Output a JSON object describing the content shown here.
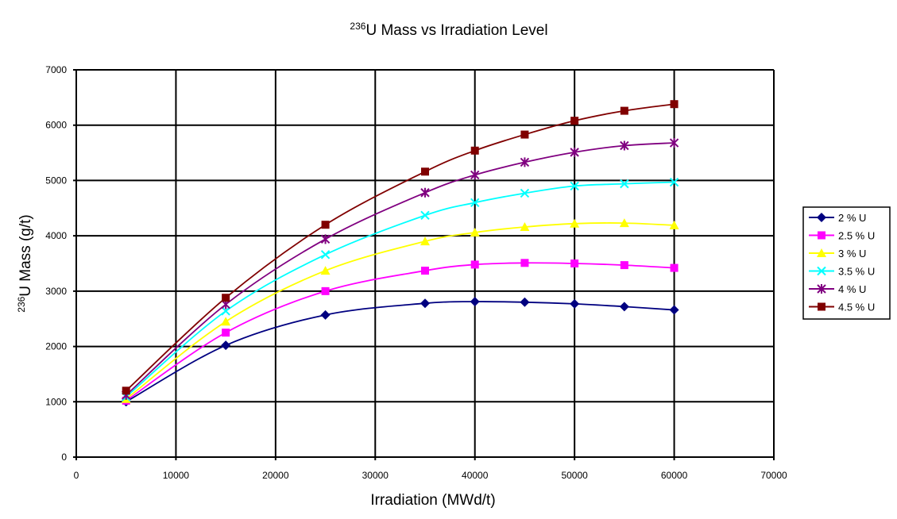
{
  "chart_data": {
    "type": "line",
    "title_sup": "236",
    "title": "U  Mass vs Irradiation Level",
    "xlabel": "Irradiation (MWd/t)",
    "ylabel_sup": "236",
    "ylabel": "U Mass (g/t)",
    "xlim": [
      0,
      70000
    ],
    "ylim": [
      0,
      7000
    ],
    "xticks": [
      "0",
      "10000",
      "20000",
      "30000",
      "40000",
      "50000",
      "60000",
      "70000"
    ],
    "yticks": [
      "0",
      "1000",
      "2000",
      "3000",
      "4000",
      "5000",
      "6000",
      "7000"
    ],
    "grid": true,
    "legend_position": "right",
    "x": [
      5000,
      15000,
      25000,
      35000,
      40000,
      45000,
      50000,
      55000,
      60000
    ],
    "series": [
      {
        "name": "2 % U",
        "color": "#000080",
        "marker": "diamond",
        "values": [
          1000,
          2020,
          2570,
          2780,
          2810,
          2800,
          2770,
          2720,
          2660
        ]
      },
      {
        "name": "2.5 % U",
        "color": "#ff00ff",
        "marker": "square",
        "values": [
          1020,
          2250,
          3000,
          3370,
          3480,
          3510,
          3500,
          3470,
          3420
        ]
      },
      {
        "name": "3 % U",
        "color": "#ffff00",
        "marker": "triangle",
        "values": [
          1050,
          2450,
          3370,
          3900,
          4060,
          4160,
          4220,
          4230,
          4190
        ]
      },
      {
        "name": "3.5 % U",
        "color": "#00ffff",
        "marker": "x",
        "values": [
          1090,
          2640,
          3660,
          4370,
          4600,
          4770,
          4900,
          4940,
          4970
        ]
      },
      {
        "name": "4 % U",
        "color": "#800080",
        "marker": "star",
        "values": [
          1120,
          2760,
          3940,
          4780,
          5100,
          5330,
          5510,
          5630,
          5680
        ]
      },
      {
        "name": "4.5 % U",
        "color": "#800000",
        "marker": "square",
        "values": [
          1200,
          2880,
          4200,
          5160,
          5540,
          5830,
          6080,
          6260,
          6380
        ]
      }
    ]
  }
}
